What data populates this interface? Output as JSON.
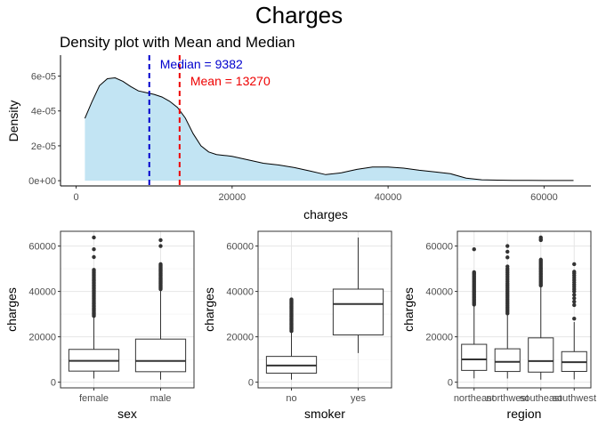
{
  "title": "Charges",
  "density": {
    "subtitle": "Density plot with Mean and Median",
    "xlabel": "charges",
    "ylabel": "Density",
    "fill_color": "#c2e4f3",
    "xlim": [
      -2000,
      66000
    ],
    "ylim": [
      -3e-06,
      7.2e-05
    ],
    "xticks": [
      0,
      20000,
      40000,
      60000
    ],
    "yticks": [
      0,
      2e-05,
      4e-05,
      6e-05
    ],
    "ytick_labels": [
      "0e+00",
      "2e-05",
      "4e-05",
      "6e-05"
    ],
    "median": {
      "value": 9382,
      "label": "Median = 9382",
      "color": "#0000cd"
    },
    "mean": {
      "value": 13270,
      "label": "Mean = 13270",
      "color": "#ee0000"
    }
  },
  "boxplots": {
    "ylabel": "charges",
    "ylim": [
      -2500,
      66500
    ],
    "yticks": [
      0,
      20000,
      40000,
      60000
    ],
    "grid": true
  },
  "chart_data": [
    {
      "type": "area",
      "title": "Density plot with Mean and Median",
      "xlabel": "charges",
      "ylabel": "Density",
      "x": [
        1122,
        2000,
        3000,
        4000,
        5000,
        6000,
        7000,
        8000,
        9000,
        10000,
        11000,
        12000,
        13000,
        14000,
        15000,
        16000,
        17000,
        18000,
        19000,
        20000,
        22000,
        24000,
        26000,
        28000,
        30000,
        32000,
        34000,
        36000,
        38000,
        40000,
        42000,
        44000,
        46000,
        48000,
        50000,
        52000,
        54000,
        56000,
        58000,
        60000,
        62000,
        63770
      ],
      "y": [
        3.58e-05,
        4.5e-05,
        5.45e-05,
        5.85e-05,
        5.9e-05,
        5.7e-05,
        5.4e-05,
        5.15e-05,
        5.05e-05,
        4.95e-05,
        4.8e-05,
        4.55e-05,
        4.2e-05,
        3.6e-05,
        2.7e-05,
        2e-05,
        1.65e-05,
        1.5e-05,
        1.45e-05,
        1.4e-05,
        1.2e-05,
        1e-05,
        9e-06,
        7.5e-06,
        5.5e-06,
        3.5e-06,
        4.5e-06,
        6.5e-06,
        7.8e-06,
        7.8e-06,
        7.2e-06,
        6e-06,
        5e-06,
        4e-06,
        1.5e-06,
        5e-07,
        3e-07,
        2e-07,
        2e-07,
        1e-07,
        1e-07,
        1e-07
      ],
      "vlines": [
        {
          "name": "Median",
          "x": 9382
        },
        {
          "name": "Mean",
          "x": 13270
        }
      ],
      "xlim": [
        -2000,
        66000
      ]
    },
    {
      "type": "box",
      "xlabel": "sex",
      "ylabel": "charges",
      "categories": [
        "female",
        "male"
      ],
      "boxes": [
        {
          "category": "female",
          "low": 1608,
          "q1": 4885,
          "median": 9413,
          "q3": 14454,
          "high": 28700,
          "outliers": [
            29200,
            29700,
            30200,
            30700,
            31200,
            31700,
            32200,
            32700,
            33300,
            33900,
            34500,
            35100,
            35700,
            36300,
            36900,
            37500,
            38100,
            38700,
            39300,
            39900,
            40500,
            41100,
            41700,
            42300,
            42900,
            43500,
            44100,
            44700,
            45300,
            45900,
            46500,
            47100,
            47700,
            48300,
            48900,
            49500,
            55135,
            58571,
            63770
          ]
        },
        {
          "category": "male",
          "low": 1122,
          "q1": 4619,
          "median": 9370,
          "q3": 18990,
          "high": 40500,
          "outliers": [
            41000,
            41500,
            42000,
            42500,
            43000,
            43500,
            44000,
            44500,
            45000,
            45500,
            46000,
            46500,
            47000,
            47500,
            48000,
            48500,
            49000,
            49500,
            50000,
            50500,
            51000,
            51500,
            52000,
            62593,
            60021
          ]
        }
      ]
    },
    {
      "type": "box",
      "xlabel": "smoker",
      "ylabel": "charges",
      "categories": [
        "no",
        "yes"
      ],
      "boxes": [
        {
          "category": "no",
          "low": 1122,
          "q1": 3986,
          "median": 7345,
          "q3": 11363,
          "high": 22000,
          "outliers": [
            22500,
            23000,
            23500,
            24000,
            24500,
            25000,
            25500,
            26000,
            26500,
            27000,
            27500,
            28000,
            28500,
            29000,
            29500,
            30000,
            30500,
            31000,
            31500,
            32000,
            32500,
            33000,
            33500,
            34000,
            34500,
            35000,
            35500,
            36000,
            36500
          ]
        },
        {
          "category": "yes",
          "low": 12829,
          "q1": 20826,
          "median": 34456,
          "q3": 41019,
          "high": 63770,
          "outliers": []
        }
      ]
    },
    {
      "type": "box",
      "xlabel": "region",
      "ylabel": "charges",
      "categories": [
        "northeast",
        "northwest",
        "southeast",
        "southwest"
      ],
      "boxes": [
        {
          "category": "northeast",
          "low": 1694,
          "q1": 5194,
          "median": 10058,
          "q3": 16687,
          "high": 33700,
          "outliers": [
            34200,
            34800,
            35400,
            36000,
            36600,
            37200,
            37800,
            38400,
            39000,
            39600,
            40200,
            40800,
            41400,
            42000,
            42600,
            43200,
            43800,
            44400,
            45000,
            45600,
            46200,
            46800,
            47400,
            48000,
            48500,
            58571
          ]
        },
        {
          "category": "northwest",
          "low": 1621,
          "q1": 4720,
          "median": 8966,
          "q3": 14712,
          "high": 29700,
          "outliers": [
            30300,
            31000,
            31700,
            32400,
            33100,
            33800,
            34500,
            35200,
            35900,
            36600,
            37300,
            38000,
            38700,
            39400,
            40100,
            40800,
            41500,
            42200,
            42900,
            43600,
            44400,
            45200,
            46000,
            46800,
            47600,
            48400,
            49200,
            50000,
            51000,
            55000,
            57500,
            60021
          ]
        },
        {
          "category": "southeast",
          "low": 1122,
          "q1": 4441,
          "median": 9294,
          "q3": 19526,
          "high": 42000,
          "outliers": [
            42600,
            43200,
            43800,
            44400,
            45000,
            45600,
            46200,
            46800,
            47400,
            48000,
            48600,
            49200,
            49800,
            50400,
            51000,
            51600,
            52200,
            52800,
            53400,
            54000,
            62593,
            63770,
            63000
          ]
        },
        {
          "category": "southwest",
          "low": 1241,
          "q1": 4751,
          "median": 8799,
          "q3": 13463,
          "high": 26500,
          "outliers": [
            28000,
            34000,
            35500,
            37000,
            38500,
            40000,
            41000,
            42000,
            43000,
            44000,
            45000,
            46000,
            47000,
            48000,
            48700,
            52000
          ]
        }
      ]
    }
  ]
}
